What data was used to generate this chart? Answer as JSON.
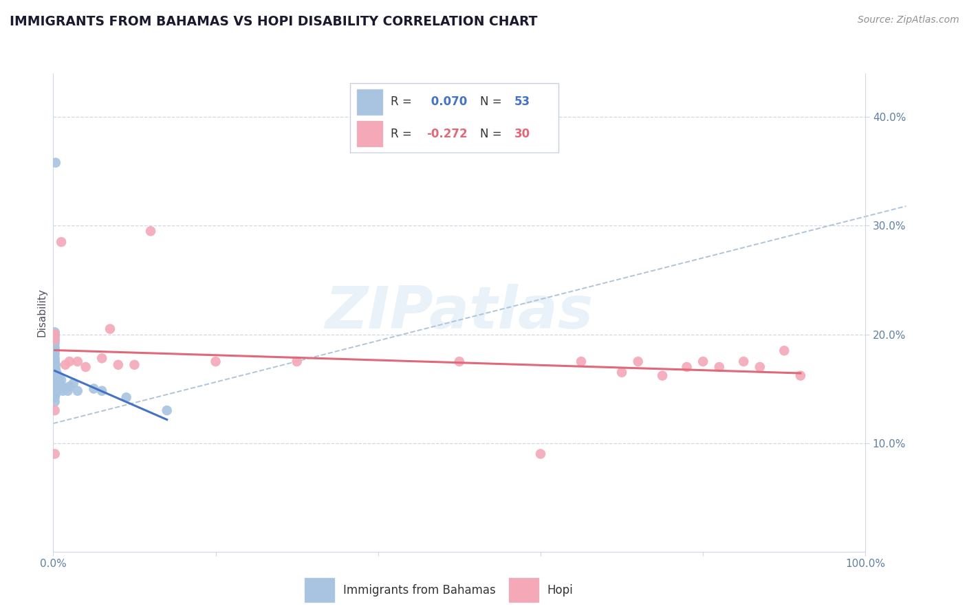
{
  "title": "IMMIGRANTS FROM BAHAMAS VS HOPI DISABILITY CORRELATION CHART",
  "source": "Source: ZipAtlas.com",
  "ylabel": "Disability",
  "xlim": [
    0.0,
    1.0
  ],
  "ylim": [
    0.0,
    0.44
  ],
  "y_ticks": [
    0.1,
    0.2,
    0.3,
    0.4
  ],
  "y_tick_labels": [
    "10.0%",
    "20.0%",
    "30.0%",
    "40.0%"
  ],
  "legend_r1_val": "0.070",
  "legend_n1": "53",
  "legend_r2_val": "-0.272",
  "legend_n2": "30",
  "blue_color": "#a8c4e0",
  "pink_color": "#f4a8b8",
  "blue_line_color": "#4472c4",
  "pink_line_color": "#e06878",
  "dashed_line_color": "#b0c4d8",
  "text_color": "#1a1a2e",
  "axis_color": "#6080a0",
  "grid_color": "#d0d8e8",
  "blue_points_x": [
    0.002,
    0.002,
    0.002,
    0.002,
    0.002,
    0.002,
    0.002,
    0.002,
    0.002,
    0.003,
    0.003,
    0.003,
    0.003,
    0.003,
    0.003,
    0.003,
    0.003,
    0.003,
    0.004,
    0.004,
    0.004,
    0.004,
    0.004,
    0.005,
    0.005,
    0.006,
    0.006,
    0.007,
    0.007,
    0.008,
    0.009,
    0.01,
    0.011,
    0.012,
    0.015,
    0.018,
    0.02,
    0.025,
    0.03,
    0.06,
    0.09,
    0.14,
    0.002,
    0.002,
    0.002,
    0.002,
    0.002,
    0.002,
    0.002,
    0.002,
    0.002,
    0.003,
    0.05
  ],
  "blue_points_y": [
    0.168,
    0.163,
    0.158,
    0.155,
    0.15,
    0.148,
    0.145,
    0.142,
    0.138,
    0.172,
    0.168,
    0.165,
    0.162,
    0.158,
    0.155,
    0.152,
    0.148,
    0.145,
    0.165,
    0.162,
    0.158,
    0.155,
    0.148,
    0.158,
    0.152,
    0.162,
    0.155,
    0.158,
    0.152,
    0.155,
    0.15,
    0.158,
    0.152,
    0.148,
    0.15,
    0.148,
    0.152,
    0.155,
    0.148,
    0.148,
    0.142,
    0.13,
    0.175,
    0.178,
    0.182,
    0.185,
    0.188,
    0.192,
    0.195,
    0.198,
    0.202,
    0.358,
    0.15
  ],
  "pink_points_x": [
    0.002,
    0.002,
    0.002,
    0.002,
    0.002,
    0.01,
    0.015,
    0.02,
    0.03,
    0.04,
    0.06,
    0.07,
    0.08,
    0.1,
    0.12,
    0.2,
    0.3,
    0.5,
    0.6,
    0.65,
    0.7,
    0.72,
    0.75,
    0.78,
    0.8,
    0.82,
    0.85,
    0.87,
    0.9,
    0.92
  ],
  "pink_points_y": [
    0.2,
    0.2,
    0.195,
    0.13,
    0.09,
    0.285,
    0.172,
    0.175,
    0.175,
    0.17,
    0.178,
    0.205,
    0.172,
    0.172,
    0.295,
    0.175,
    0.175,
    0.175,
    0.09,
    0.175,
    0.165,
    0.175,
    0.162,
    0.17,
    0.175,
    0.17,
    0.175,
    0.17,
    0.185,
    0.162
  ]
}
